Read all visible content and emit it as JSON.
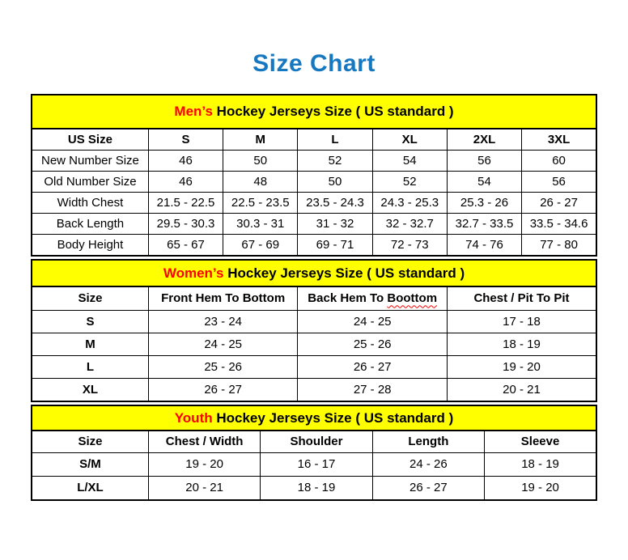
{
  "page_title": "Size Chart",
  "colors": {
    "title_blue": "#1778c2",
    "accent_red": "#ff0000",
    "band_yellow": "#ffff00",
    "grid_black": "#000000"
  },
  "chart_data": [
    {
      "type": "table",
      "id": "mens",
      "title": {
        "highlight": "Men’s",
        "rest": "Hockey Jerseys Size ( US standard )"
      },
      "columns": [
        "US Size",
        "S",
        "M",
        "L",
        "XL",
        "2XL",
        "3XL"
      ],
      "rows": [
        [
          "New Number Size",
          "46",
          "50",
          "52",
          "54",
          "56",
          "60"
        ],
        [
          "Old Number Size",
          "46",
          "48",
          "50",
          "52",
          "54",
          "56"
        ],
        [
          "Width Chest",
          "21.5 - 22.5",
          "22.5 - 23.5",
          "23.5 - 24.3",
          "24.3 - 25.3",
          "25.3 - 26",
          "26 - 27"
        ],
        [
          "Back Length",
          "29.5 - 30.3",
          "30.3 - 31",
          "31 - 32",
          "32 - 32.7",
          "32.7 - 33.5",
          "33.5 - 34.6"
        ],
        [
          "Body Height",
          "65 - 67",
          "67 - 69",
          "69 - 71",
          "72 - 73",
          "74 - 76",
          "77 - 80"
        ]
      ]
    },
    {
      "type": "table",
      "id": "womens",
      "title": {
        "highlight": "Women’s",
        "rest": "Hockey Jerseys Size ( US standard )"
      },
      "columns": [
        "Size",
        "Front Hem To Bottom",
        "Back Hem To Boottom",
        "Chest / Pit To Pit"
      ],
      "spellcheck_underline": {
        "column_index": 2,
        "word": "Boottom"
      },
      "rows": [
        [
          "S",
          "23 - 24",
          "24 - 25",
          "17 - 18"
        ],
        [
          "M",
          "24 - 25",
          "25 - 26",
          "18 - 19"
        ],
        [
          "L",
          "25 - 26",
          "26 - 27",
          "19 - 20"
        ],
        [
          "XL",
          "26 - 27",
          "27 - 28",
          "20 - 21"
        ]
      ]
    },
    {
      "type": "table",
      "id": "youth",
      "title": {
        "highlight": "Youth",
        "rest": "Hockey Jerseys Size ( US standard )"
      },
      "columns": [
        "Size",
        "Chest / Width",
        "Shoulder",
        "Length",
        "Sleeve"
      ],
      "rows": [
        [
          "S/M",
          "19 - 20",
          "16 - 17",
          "24 - 26",
          "18 - 19"
        ],
        [
          "L/XL",
          "20 - 21",
          "18 - 19",
          "26 - 27",
          "19 - 20"
        ]
      ]
    }
  ]
}
